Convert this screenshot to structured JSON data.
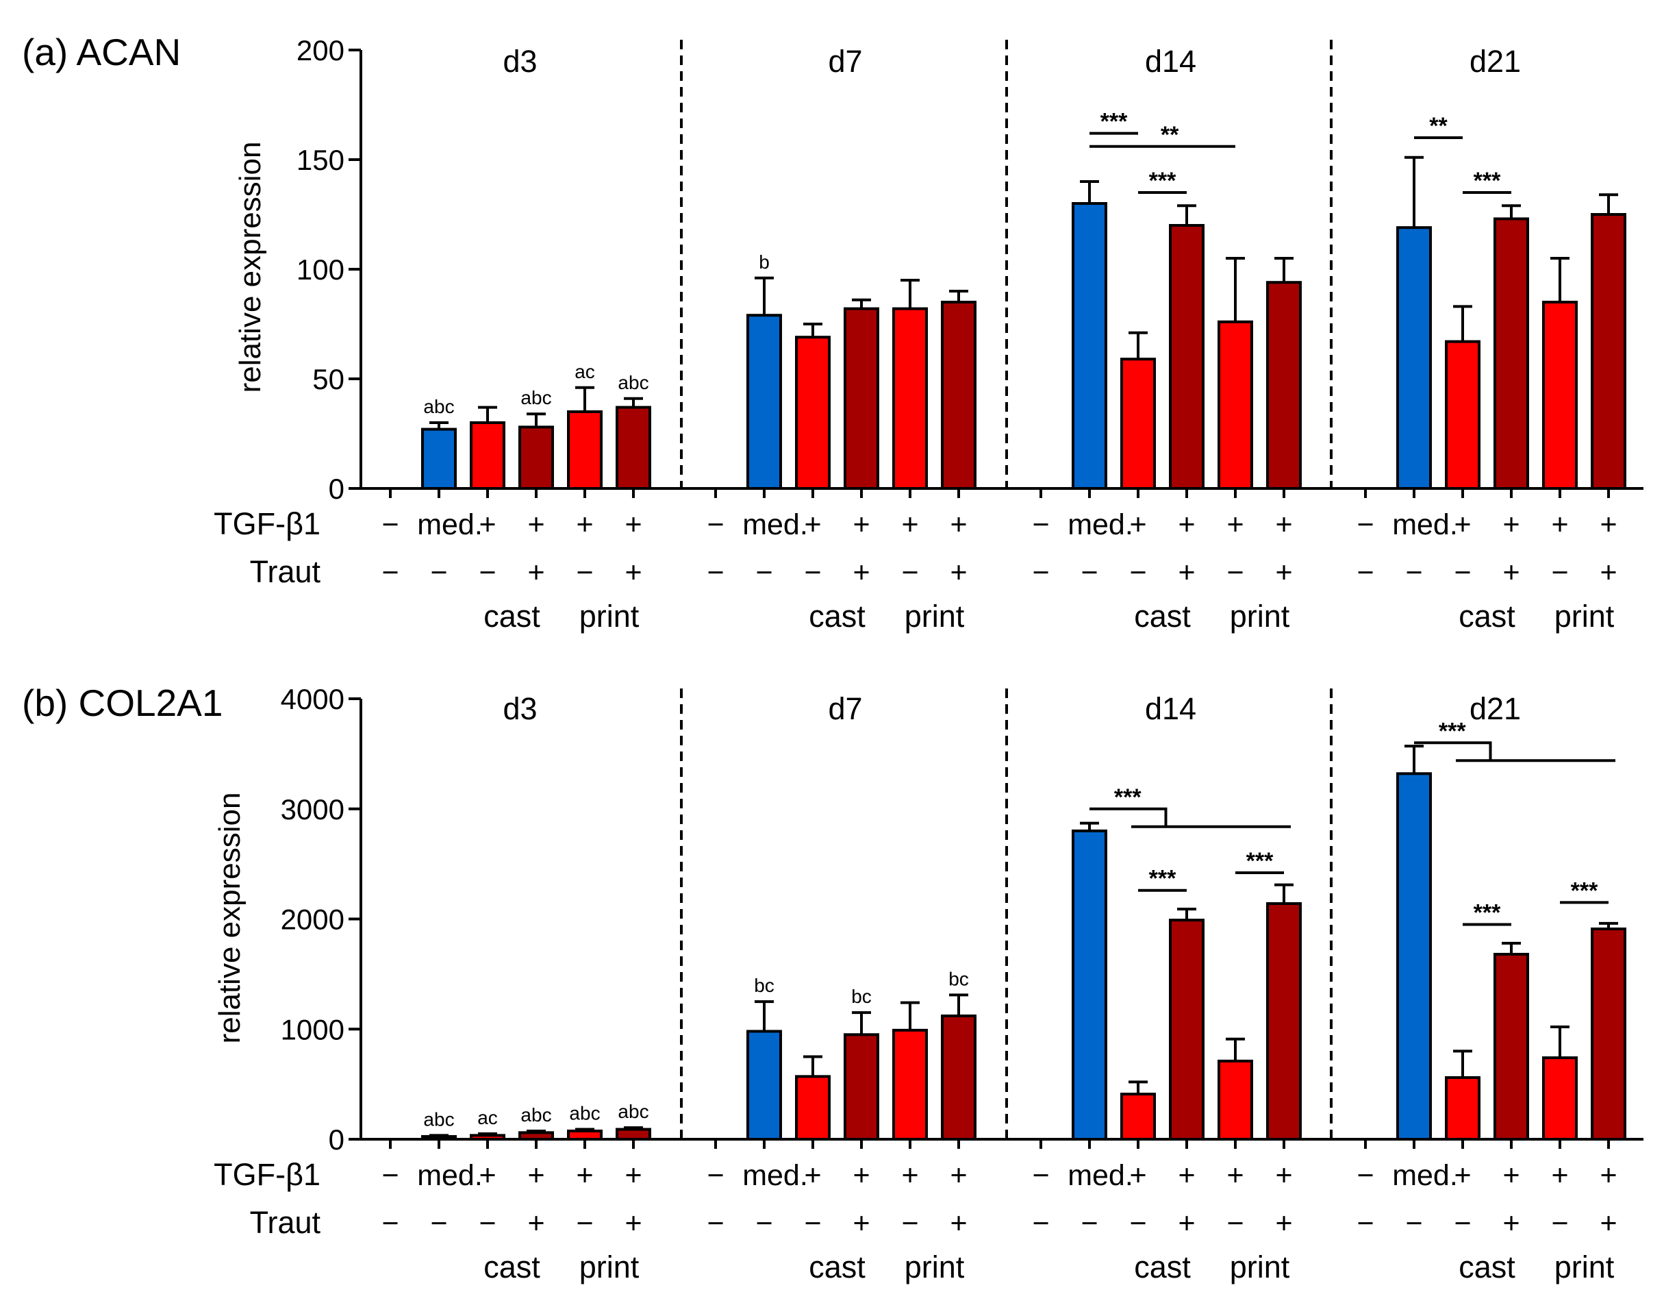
{
  "colors": {
    "blue": "#0066cc",
    "red": "#ff0000",
    "darkred": "#a50000",
    "axis": "#000000"
  },
  "row_labels": {
    "tgf": "TGF-β1",
    "traut": "Traut"
  },
  "group_labels": [
    "cast",
    "print"
  ],
  "chart_data": [
    {
      "type": "bar",
      "panel": "(a) ACAN",
      "title": "(a) ACAN",
      "ylabel": "relative expression",
      "xlabel": "",
      "ylim": [
        0,
        200
      ],
      "yticks": [
        "0",
        "50",
        "100",
        "150",
        "200"
      ],
      "categories": [
        "−",
        "med.",
        "+",
        "+",
        "+",
        "+"
      ],
      "traut": [
        "−",
        "−",
        "−",
        "+",
        "−",
        "+"
      ],
      "bar_colors": [
        "blue",
        "blue",
        "red",
        "darkred",
        "red",
        "darkred"
      ],
      "days": [
        {
          "label": "d3",
          "values": [
            0,
            27,
            30,
            28,
            35,
            37
          ],
          "errors": [
            0,
            3,
            7,
            6,
            11,
            4
          ],
          "notes": [
            "",
            "abc",
            "",
            "abc",
            "ac",
            "abc"
          ],
          "sig": []
        },
        {
          "label": "d7",
          "values": [
            0,
            79,
            69,
            82,
            82,
            85
          ],
          "errors": [
            0,
            17,
            6,
            4,
            13,
            5
          ],
          "notes": [
            "",
            "b",
            "",
            "",
            "",
            ""
          ],
          "sig": []
        },
        {
          "label": "d14",
          "values": [
            0,
            130,
            59,
            120,
            76,
            94
          ],
          "errors": [
            0,
            10,
            12,
            9,
            29,
            11
          ],
          "notes": [
            "",
            "",
            "",
            "",
            "",
            ""
          ],
          "sig": [
            {
              "type": "line",
              "from": 1,
              "to": 2,
              "y": 162,
              "label": "***"
            },
            {
              "type": "line",
              "from": 1,
              "to": 4,
              "y": 156,
              "label": "**"
            },
            {
              "type": "line",
              "from": 2,
              "to": 3,
              "y": 135,
              "label": "***"
            }
          ]
        },
        {
          "label": "d21",
          "values": [
            0,
            119,
            67,
            123,
            85,
            125
          ],
          "errors": [
            0,
            32,
            16,
            6,
            20,
            9
          ],
          "notes": [
            "",
            "",
            "",
            "",
            "",
            ""
          ],
          "sig": [
            {
              "type": "line",
              "from": 1,
              "to": 2,
              "y": 160,
              "label": "**"
            },
            {
              "type": "line",
              "from": 2,
              "to": 3,
              "y": 135,
              "label": "***"
            }
          ]
        }
      ]
    },
    {
      "type": "bar",
      "panel": "(b) COL2A1",
      "title": "(b) COL2A1",
      "ylabel": "relative expression",
      "xlabel": "",
      "ylim": [
        0,
        4000
      ],
      "yticks": [
        "0",
        "1000",
        "2000",
        "3000",
        "4000"
      ],
      "categories": [
        "−",
        "med.",
        "+",
        "+",
        "+",
        "+"
      ],
      "traut": [
        "−",
        "−",
        "−",
        "+",
        "−",
        "+"
      ],
      "bar_colors": [
        "blue",
        "blue",
        "red",
        "darkred",
        "red",
        "darkred"
      ],
      "days": [
        {
          "label": "d3",
          "values": [
            0,
            25,
            35,
            60,
            75,
            90
          ],
          "errors": [
            0,
            10,
            15,
            15,
            15,
            15
          ],
          "notes": [
            "",
            "abc",
            "ac",
            "abc",
            "abc",
            "abc"
          ],
          "sig": []
        },
        {
          "label": "d7",
          "values": [
            0,
            980,
            570,
            950,
            990,
            1120
          ],
          "errors": [
            0,
            270,
            180,
            200,
            250,
            190
          ],
          "notes": [
            "",
            "bc",
            "",
            "bc",
            "",
            "bc"
          ],
          "sig": []
        },
        {
          "label": "d14",
          "values": [
            0,
            2800,
            410,
            1990,
            710,
            2140
          ],
          "errors": [
            0,
            70,
            110,
            100,
            200,
            170
          ],
          "notes": [
            "",
            "",
            "",
            "",
            "",
            ""
          ],
          "sig": [
            {
              "type": "bracket",
              "left": 1,
              "right": 5,
              "y": 3000,
              "label": "***"
            },
            {
              "type": "line",
              "from": 2,
              "to": 3,
              "y": 2260,
              "label": "***"
            },
            {
              "type": "line",
              "from": 4,
              "to": 5,
              "y": 2420,
              "label": "***"
            }
          ]
        },
        {
          "label": "d21",
          "values": [
            0,
            3320,
            560,
            1680,
            740,
            1910
          ],
          "errors": [
            0,
            250,
            240,
            100,
            280,
            50
          ],
          "notes": [
            "",
            "",
            "",
            "",
            "",
            ""
          ],
          "sig": [
            {
              "type": "bracket",
              "left": 1,
              "right": 5,
              "y": 3600,
              "label": "***"
            },
            {
              "type": "line",
              "from": 2,
              "to": 3,
              "y": 1950,
              "label": "***"
            },
            {
              "type": "line",
              "from": 4,
              "to": 5,
              "y": 2150,
              "label": "***"
            }
          ]
        }
      ]
    }
  ]
}
